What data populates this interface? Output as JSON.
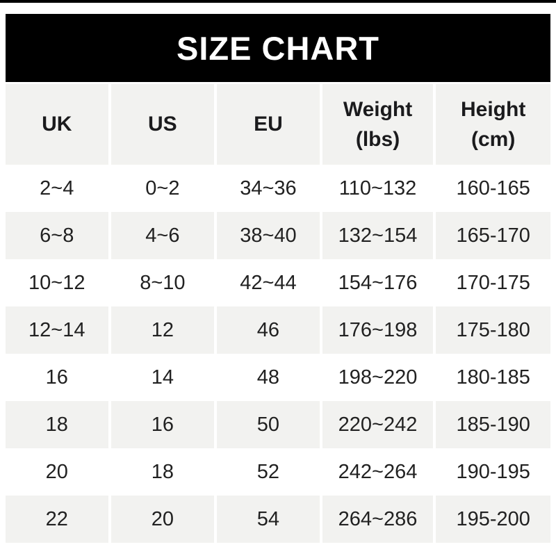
{
  "banner": {
    "title": "SIZE CHART",
    "bg_color": "#000000",
    "text_color": "#ffffff"
  },
  "colors": {
    "stripe": "#f2f2f0",
    "row_alt": "#ffffff",
    "text": "#212121",
    "header_text": "#1b1b1d",
    "top_bar": "#000000"
  },
  "chart_data": {
    "type": "table",
    "title": "SIZE CHART",
    "columns": [
      "UK",
      "US",
      "EU",
      "Weight (lbs)",
      "Height (cm)"
    ],
    "header": [
      {
        "label": "UK",
        "sublabel": ""
      },
      {
        "label": "US",
        "sublabel": ""
      },
      {
        "label": "EU",
        "sublabel": ""
      },
      {
        "label": "Weight",
        "sublabel": "(lbs)"
      },
      {
        "label": "Height",
        "sublabel": "(cm)"
      }
    ],
    "rows": [
      [
        "2~4",
        "0~2",
        "34~36",
        "110~132",
        "160-165"
      ],
      [
        "6~8",
        "4~6",
        "38~40",
        "132~154",
        "165-170"
      ],
      [
        "10~12",
        "8~10",
        "42~44",
        "154~176",
        "170-175"
      ],
      [
        "12~14",
        "12",
        "46",
        "176~198",
        "175-180"
      ],
      [
        "16",
        "14",
        "48",
        "198~220",
        "180-185"
      ],
      [
        "18",
        "16",
        "50",
        "220~242",
        "185-190"
      ],
      [
        "20",
        "18",
        "52",
        "242~264",
        "190-195"
      ],
      [
        "22",
        "20",
        "54",
        "264~286",
        "195-200"
      ]
    ],
    "layout": {
      "striped_rows": "even",
      "grid": "white gutters between columns",
      "legend": "none"
    }
  }
}
